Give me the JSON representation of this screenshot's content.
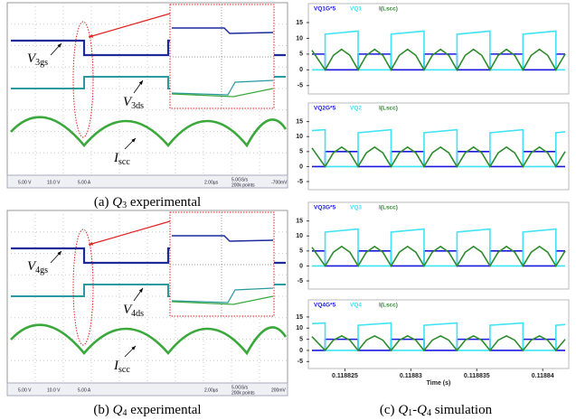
{
  "experimental": [
    {
      "caption": {
        "label": "(a) ",
        "symbol": "Q",
        "index": "3",
        "text": " experimental"
      },
      "signals": [
        {
          "symbol": "V",
          "subscript": "3gs"
        },
        {
          "symbol": "V",
          "subscript": "3ds"
        },
        {
          "symbol": "I",
          "subscript": "scc"
        }
      ],
      "status": [
        "5.00 V",
        "10.0 V",
        "5.00 A",
        "2.00µs",
        "5.0GS/s",
        "200k points",
        "-700mV"
      ]
    },
    {
      "caption": {
        "label": "(b) ",
        "symbol": "Q",
        "index": "4",
        "text": " experimental"
      },
      "signals": [
        {
          "symbol": "V",
          "subscript": "4gs"
        },
        {
          "symbol": "V",
          "subscript": "4ds"
        },
        {
          "symbol": "I",
          "subscript": "scc"
        }
      ],
      "status": [
        "5.00 V",
        "10.0 V",
        "5.00 A",
        "2.00µs",
        "5.0GS/s",
        "200k points",
        "200mV"
      ]
    }
  ],
  "simulation_caption": {
    "label": "(c) ",
    "symbol1": "Q",
    "index1": "1",
    "dash": "-",
    "symbol2": "Q",
    "index2": "4",
    "text": " simulation"
  },
  "chart_data": [
    {
      "type": "line",
      "xlim": [
        0.1188225,
        0.1188417
      ],
      "ylim": [
        -6.5,
        17
      ],
      "yticks": [
        -5,
        0,
        5,
        10,
        15
      ],
      "series": [
        {
          "name": "VQ1G*5",
          "color": "#1a1adf",
          "x": [
            0.1188225,
            0.1188235,
            0.1188235,
            0.118826,
            0.118826,
            0.1188285,
            0.1188285,
            0.118831,
            0.118831,
            0.1188335,
            0.1188335,
            0.118836,
            0.118836,
            0.1188385,
            0.1188385,
            0.118841,
            0.118841,
            0.1188417
          ],
          "values": [
            5,
            5,
            0,
            0,
            5,
            5,
            0,
            0,
            5,
            5,
            0,
            0,
            5,
            5,
            0,
            0,
            5,
            5
          ]
        },
        {
          "name": "VQ1",
          "color": "#3fe3f5",
          "x": [
            0.1188225,
            0.1188235,
            0.1188235,
            0.118826,
            0.118826,
            0.1188285,
            0.1188285,
            0.118831,
            0.118831,
            0.1188335,
            0.1188335,
            0.118836,
            0.118836,
            0.1188385,
            0.1188385,
            0.118841,
            0.118841,
            0.1188417
          ],
          "values": [
            0,
            0,
            11.3,
            12.3,
            0,
            0,
            11.3,
            12.3,
            0,
            0,
            11.3,
            12.3,
            0,
            0,
            11.3,
            12.3,
            0,
            0
          ]
        },
        {
          "name": "I(Lscc)",
          "color": "#2e8b2e",
          "x": [
            0.1188225,
            0.1188235,
            0.118824125,
            0.11882475,
            0.118825375,
            0.118826,
            0.118826625,
            0.11882725,
            0.118827875,
            0.1188285,
            0.118829125,
            0.11882975,
            0.118830375,
            0.118831,
            0.118831625,
            0.11883225,
            0.118832875,
            0.1188335,
            0.118834125,
            0.11883475,
            0.118835375,
            0.118836,
            0.118836625,
            0.11883725,
            0.118837875,
            0.1188385,
            0.118839125,
            0.11883975,
            0.118840375,
            0.118841,
            0.1188417
          ],
          "values": [
            6.2,
            0,
            4.6,
            6.5,
            4.6,
            0,
            4.6,
            6.5,
            4.6,
            0,
            4.6,
            6.5,
            4.6,
            0,
            4.6,
            6.5,
            4.6,
            0,
            4.6,
            6.5,
            4.6,
            0,
            4.6,
            6.5,
            4.6,
            0,
            4.6,
            6.5,
            4.6,
            0,
            5
          ]
        }
      ]
    },
    {
      "type": "line",
      "xlim": [
        0.1188225,
        0.1188417
      ],
      "ylim": [
        -6.5,
        17
      ],
      "yticks": [
        -5,
        0,
        5,
        10,
        15
      ],
      "series": [
        {
          "name": "VQ2G*5",
          "color": "#1a1adf",
          "x": [
            0.1188225,
            0.1188235,
            0.1188235,
            0.118826,
            0.118826,
            0.1188285,
            0.1188285,
            0.118831,
            0.118831,
            0.1188335,
            0.1188335,
            0.118836,
            0.118836,
            0.1188385,
            0.1188385,
            0.118841,
            0.118841,
            0.1188417
          ],
          "values": [
            0,
            0,
            5,
            5,
            0,
            0,
            5,
            5,
            0,
            0,
            5,
            5,
            0,
            0,
            5,
            5,
            0,
            0
          ]
        },
        {
          "name": "VQ2",
          "color": "#3fe3f5",
          "x": [
            0.1188225,
            0.1188235,
            0.1188235,
            0.118826,
            0.118826,
            0.1188285,
            0.1188285,
            0.118831,
            0.118831,
            0.1188335,
            0.1188335,
            0.118836,
            0.118836,
            0.1188385,
            0.1188385,
            0.118841,
            0.118841,
            0.1188417
          ],
          "values": [
            12,
            12.3,
            0,
            0,
            11.3,
            12.3,
            0,
            0,
            11.3,
            12.3,
            0,
            0,
            11.3,
            12.3,
            0,
            0,
            11.3,
            11.6
          ]
        },
        {
          "name": "I(Lscc)",
          "color": "#2e8b2e",
          "x": [
            0.1188225,
            0.1188235,
            0.118824125,
            0.11882475,
            0.118825375,
            0.118826,
            0.118826625,
            0.11882725,
            0.118827875,
            0.1188285,
            0.118829125,
            0.11882975,
            0.118830375,
            0.118831,
            0.118831625,
            0.11883225,
            0.118832875,
            0.1188335,
            0.118834125,
            0.11883475,
            0.118835375,
            0.118836,
            0.118836625,
            0.11883725,
            0.118837875,
            0.1188385,
            0.118839125,
            0.11883975,
            0.118840375,
            0.118841,
            0.1188417
          ],
          "values": [
            6.2,
            0,
            4.6,
            6.5,
            4.6,
            0,
            4.6,
            6.5,
            4.6,
            0,
            4.6,
            6.5,
            4.6,
            0,
            4.6,
            6.5,
            4.6,
            0,
            4.6,
            6.5,
            4.6,
            0,
            4.6,
            6.5,
            4.6,
            0,
            4.6,
            6.5,
            4.6,
            0,
            5
          ]
        }
      ]
    },
    {
      "type": "line",
      "xlim": [
        0.1188225,
        0.1188417
      ],
      "ylim": [
        -6.5,
        17
      ],
      "yticks": [
        -5,
        0,
        5,
        10,
        15
      ],
      "series": [
        {
          "name": "VQ3G*5",
          "color": "#1a1adf",
          "x": [
            0.1188225,
            0.1188235,
            0.1188235,
            0.118826,
            0.118826,
            0.1188285,
            0.1188285,
            0.118831,
            0.118831,
            0.1188335,
            0.1188335,
            0.118836,
            0.118836,
            0.1188385,
            0.1188385,
            0.118841,
            0.118841,
            0.1188417
          ],
          "values": [
            5,
            5,
            0,
            0,
            5,
            5,
            0,
            0,
            5,
            5,
            0,
            0,
            5,
            5,
            0,
            0,
            5,
            5
          ]
        },
        {
          "name": "VQ3",
          "color": "#3fe3f5",
          "x": [
            0.1188225,
            0.1188235,
            0.1188235,
            0.118826,
            0.118826,
            0.1188285,
            0.1188285,
            0.118831,
            0.118831,
            0.1188335,
            0.1188335,
            0.118836,
            0.118836,
            0.1188385,
            0.1188385,
            0.118841,
            0.118841,
            0.1188417
          ],
          "values": [
            0,
            0,
            11.3,
            12.3,
            0,
            0,
            11.3,
            12.3,
            0,
            0,
            11.3,
            12.3,
            0,
            0,
            11.3,
            12.3,
            0,
            0
          ]
        },
        {
          "name": "I(Lscc)",
          "color": "#2e8b2e",
          "x": [
            0.1188225,
            0.1188235,
            0.118824125,
            0.11882475,
            0.118825375,
            0.118826,
            0.118826625,
            0.11882725,
            0.118827875,
            0.1188285,
            0.118829125,
            0.11882975,
            0.118830375,
            0.118831,
            0.118831625,
            0.11883225,
            0.118832875,
            0.1188335,
            0.118834125,
            0.11883475,
            0.118835375,
            0.118836,
            0.118836625,
            0.11883725,
            0.118837875,
            0.1188385,
            0.118839125,
            0.11883975,
            0.118840375,
            0.118841,
            0.1188417
          ],
          "values": [
            6.2,
            0,
            4.6,
            6.5,
            4.6,
            0,
            4.6,
            6.5,
            4.6,
            0,
            4.6,
            6.5,
            4.6,
            0,
            4.6,
            6.5,
            4.6,
            0,
            4.6,
            6.5,
            4.6,
            0,
            4.6,
            6.5,
            4.6,
            0,
            4.6,
            6.5,
            4.6,
            0,
            5
          ]
        }
      ]
    },
    {
      "type": "line",
      "xlim": [
        0.1188225,
        0.1188417
      ],
      "ylim": [
        -6.5,
        17
      ],
      "yticks": [
        -5,
        0,
        5,
        10,
        15
      ],
      "xticks": [
        0.118825,
        0.11883,
        0.118835,
        0.11884
      ],
      "xlabel": "Time (s)",
      "series": [
        {
          "name": "VQ4G*5",
          "color": "#1a1adf",
          "x": [
            0.1188225,
            0.1188235,
            0.1188235,
            0.118826,
            0.118826,
            0.1188285,
            0.1188285,
            0.118831,
            0.118831,
            0.1188335,
            0.1188335,
            0.118836,
            0.118836,
            0.1188385,
            0.1188385,
            0.118841,
            0.118841,
            0.1188417
          ],
          "values": [
            0,
            0,
            5,
            5,
            0,
            0,
            5,
            5,
            0,
            0,
            5,
            5,
            0,
            0,
            5,
            5,
            0,
            0
          ]
        },
        {
          "name": "VQ4",
          "color": "#3fe3f5",
          "x": [
            0.1188225,
            0.1188235,
            0.1188235,
            0.118826,
            0.118826,
            0.1188285,
            0.1188285,
            0.118831,
            0.118831,
            0.1188335,
            0.1188335,
            0.118836,
            0.118836,
            0.1188385,
            0.1188385,
            0.118841,
            0.118841,
            0.1188417
          ],
          "values": [
            12,
            12.3,
            0,
            0,
            11.3,
            12.3,
            0,
            0,
            11.3,
            12.3,
            0,
            0,
            11.3,
            12.3,
            0,
            0,
            11.3,
            11.6
          ]
        },
        {
          "name": "I(Lscc)",
          "color": "#2e8b2e",
          "x": [
            0.1188225,
            0.1188235,
            0.118824125,
            0.11882475,
            0.118825375,
            0.118826,
            0.118826625,
            0.11882725,
            0.118827875,
            0.1188285,
            0.118829125,
            0.11882975,
            0.118830375,
            0.118831,
            0.118831625,
            0.11883225,
            0.118832875,
            0.1188335,
            0.118834125,
            0.11883475,
            0.118835375,
            0.118836,
            0.118836625,
            0.11883725,
            0.118837875,
            0.1188385,
            0.118839125,
            0.11883975,
            0.118840375,
            0.118841,
            0.1188417
          ],
          "values": [
            6.2,
            0,
            4.6,
            6.5,
            4.6,
            0,
            4.6,
            6.5,
            4.6,
            0,
            4.6,
            6.5,
            4.6,
            0,
            4.6,
            6.5,
            4.6,
            0,
            4.6,
            6.5,
            4.6,
            0,
            4.6,
            6.5,
            4.6,
            0,
            4.6,
            6.5,
            4.6,
            0,
            5
          ]
        }
      ]
    }
  ]
}
